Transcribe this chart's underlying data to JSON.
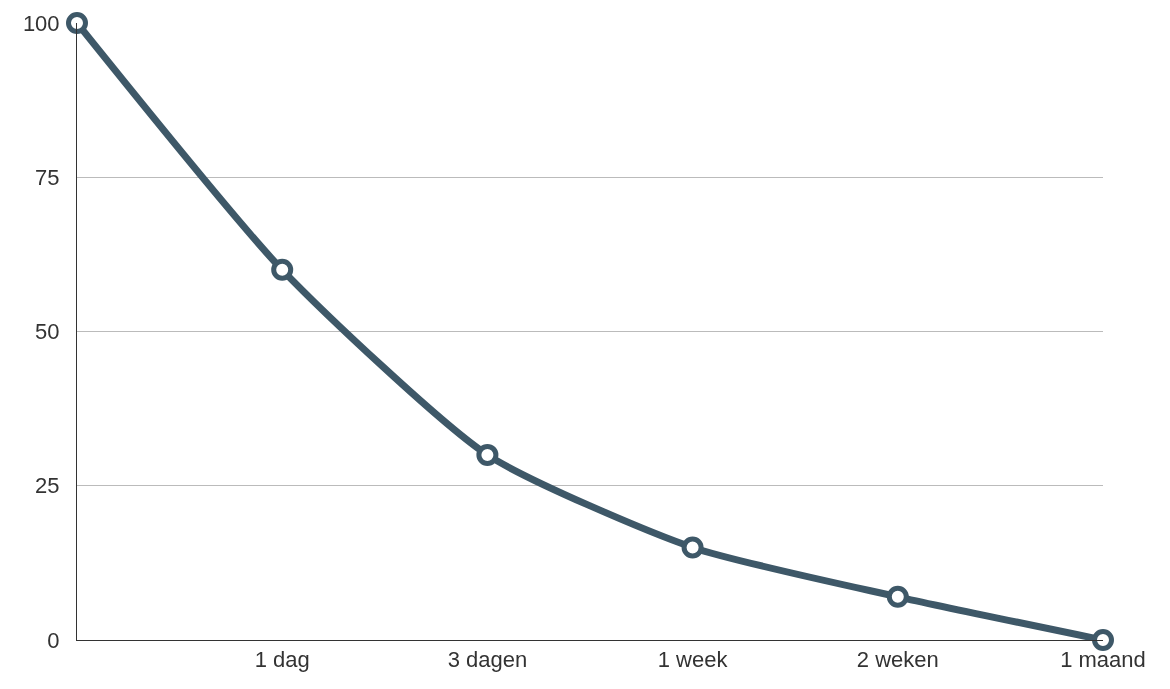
{
  "chart_data": {
    "type": "line",
    "categories": [
      null,
      "1 dag",
      "3 dagen",
      "1 week",
      "2 weken",
      "1 maand"
    ],
    "series": [
      {
        "color": "#3e5868",
        "values": [
          100,
          60,
          30,
          15,
          7,
          0
        ]
      }
    ],
    "ylim": [
      0,
      100
    ],
    "yticks": [
      0,
      25,
      50,
      75,
      100
    ],
    "grid": "y",
    "marker": "circle",
    "line_style": "solid"
  }
}
